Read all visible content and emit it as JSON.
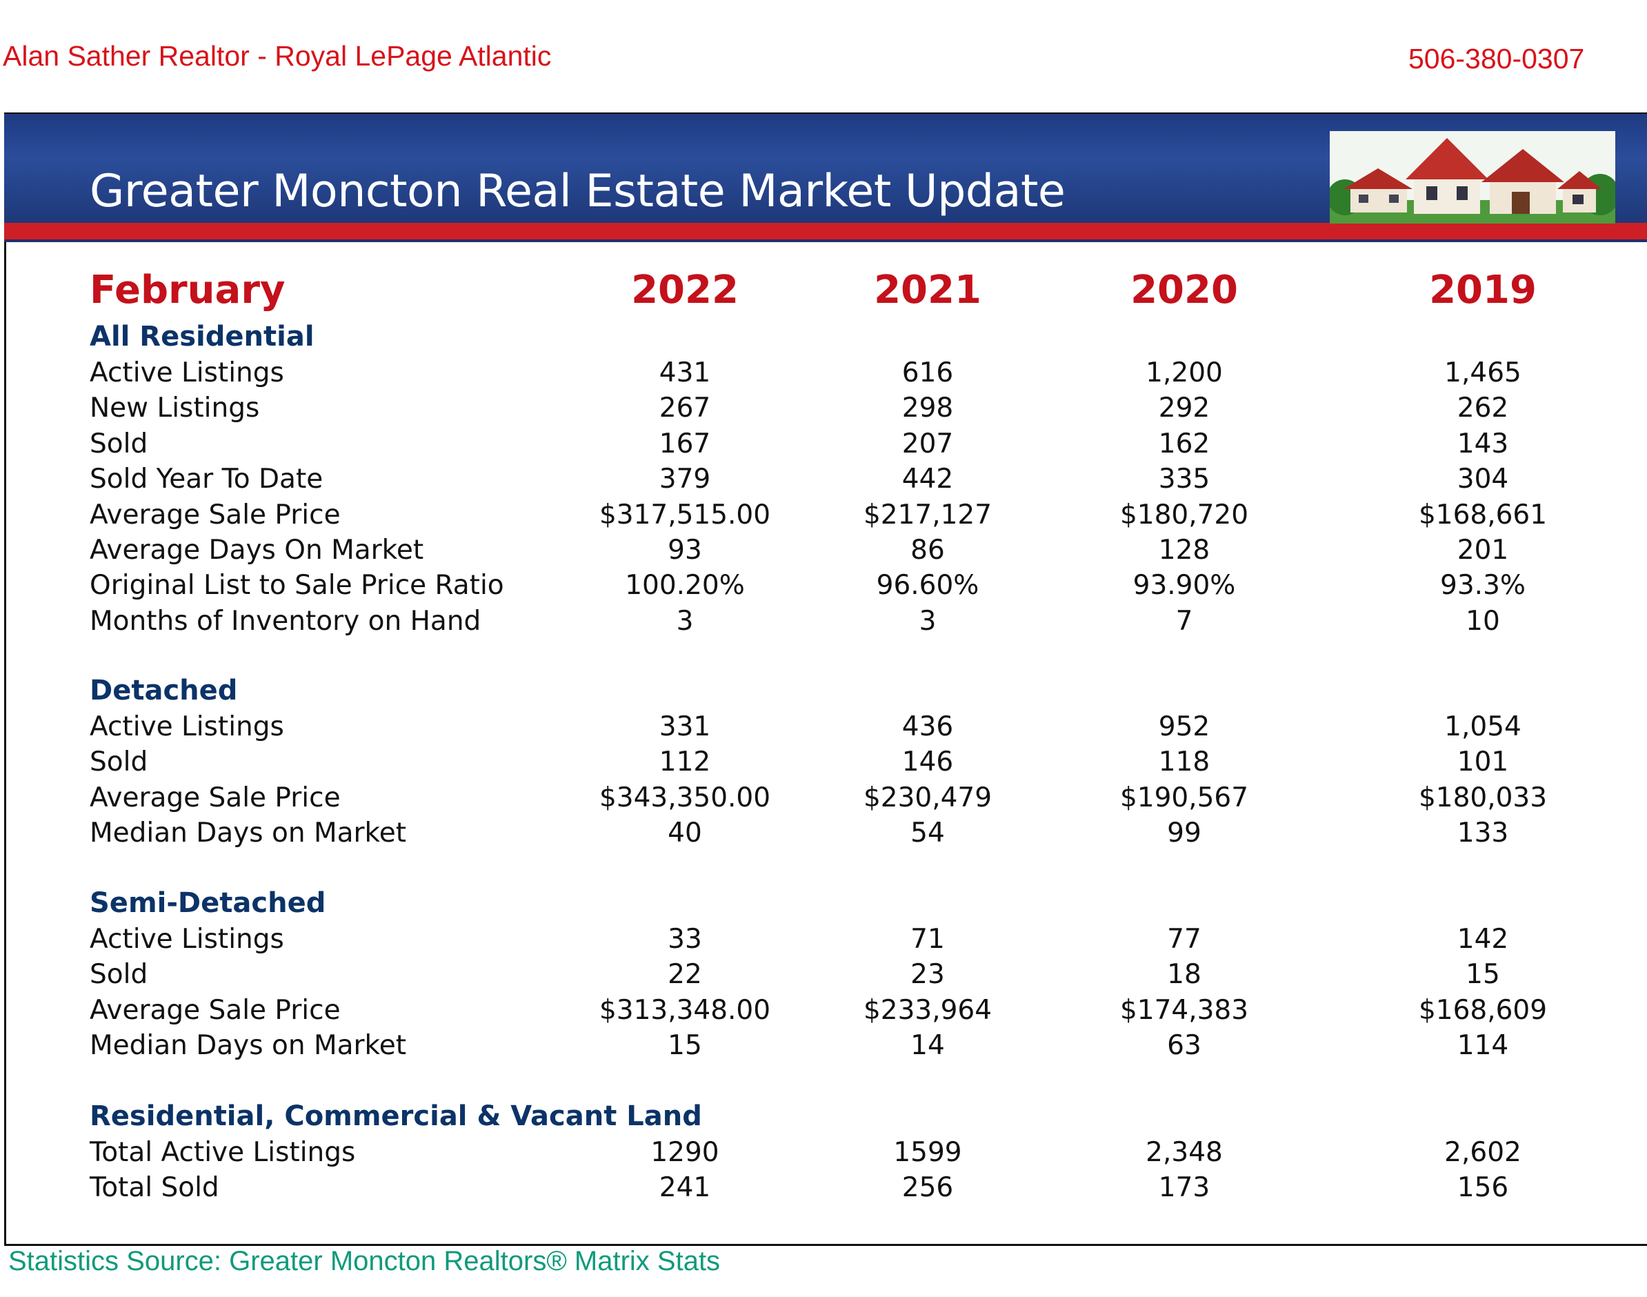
{
  "header": {
    "realtor": "Alan Sather Realtor - Royal LePage Atlantic",
    "phone": "506-380-0307"
  },
  "banner": {
    "title": "Greater Moncton Real Estate Market Update"
  },
  "table": {
    "month": "February",
    "years": [
      "2022",
      "2021",
      "2020",
      "2019"
    ],
    "sections": [
      {
        "name": "All Residential",
        "rows": [
          {
            "label": "Active Listings",
            "values": [
              "431",
              "616",
              "1,200",
              "1,465"
            ]
          },
          {
            "label": "New Listings",
            "values": [
              "267",
              "298",
              "292",
              "262"
            ]
          },
          {
            "label": "Sold",
            "values": [
              "167",
              "207",
              "162",
              "143"
            ]
          },
          {
            "label": "Sold Year To Date",
            "values": [
              "379",
              "442",
              "335",
              "304"
            ]
          },
          {
            "label": "Average Sale Price",
            "values": [
              "$317,515.00",
              "$217,127",
              "$180,720",
              "$168,661"
            ]
          },
          {
            "label": "Average Days On Market",
            "values": [
              "93",
              "86",
              "128",
              "201"
            ]
          },
          {
            "label": "Original List to Sale Price Ratio",
            "values": [
              "100.20%",
              "96.60%",
              "93.90%",
              "93.3%"
            ]
          },
          {
            "label": "Months of Inventory on Hand",
            "values": [
              "3",
              "3",
              "7",
              "10"
            ]
          }
        ]
      },
      {
        "name": "Detached",
        "rows": [
          {
            "label": "Active Listings",
            "values": [
              "331",
              "436",
              "952",
              "1,054"
            ]
          },
          {
            "label": "Sold",
            "values": [
              "112",
              "146",
              "118",
              "101"
            ]
          },
          {
            "label": "Average Sale Price",
            "values": [
              "$343,350.00",
              "$230,479",
              "$190,567",
              "$180,033"
            ]
          },
          {
            "label": "Median Days on Market",
            "values": [
              "40",
              "54",
              "99",
              "133"
            ]
          }
        ]
      },
      {
        "name": "Semi-Detached",
        "rows": [
          {
            "label": "Active Listings",
            "values": [
              "33",
              "71",
              "77",
              "142"
            ]
          },
          {
            "label": "Sold",
            "values": [
              "22",
              "23",
              "18",
              "15"
            ]
          },
          {
            "label": "Average Sale Price",
            "values": [
              "$313,348.00",
              "$233,964",
              "$174,383",
              "$168,609"
            ]
          },
          {
            "label": "Median Days on Market",
            "values": [
              "15",
              "14",
              "63",
              "114"
            ]
          }
        ]
      },
      {
        "name": "Residential, Commercial & Vacant Land",
        "rows": [
          {
            "label": "Total Active Listings",
            "values": [
              "1290",
              "1599",
              "2,348",
              "2,602"
            ]
          },
          {
            "label": "Total Sold",
            "values": [
              "241",
              "256",
              "173",
              "156"
            ]
          }
        ]
      }
    ]
  },
  "footer": {
    "source": "Statistics Source:  Greater Moncton Realtors® Matrix Stats"
  },
  "colors": {
    "banner_blue": "#2b4d9a",
    "accent_red": "#cf1f26",
    "section_navy": "#0c3368",
    "source_green": "#0f9a7c"
  }
}
